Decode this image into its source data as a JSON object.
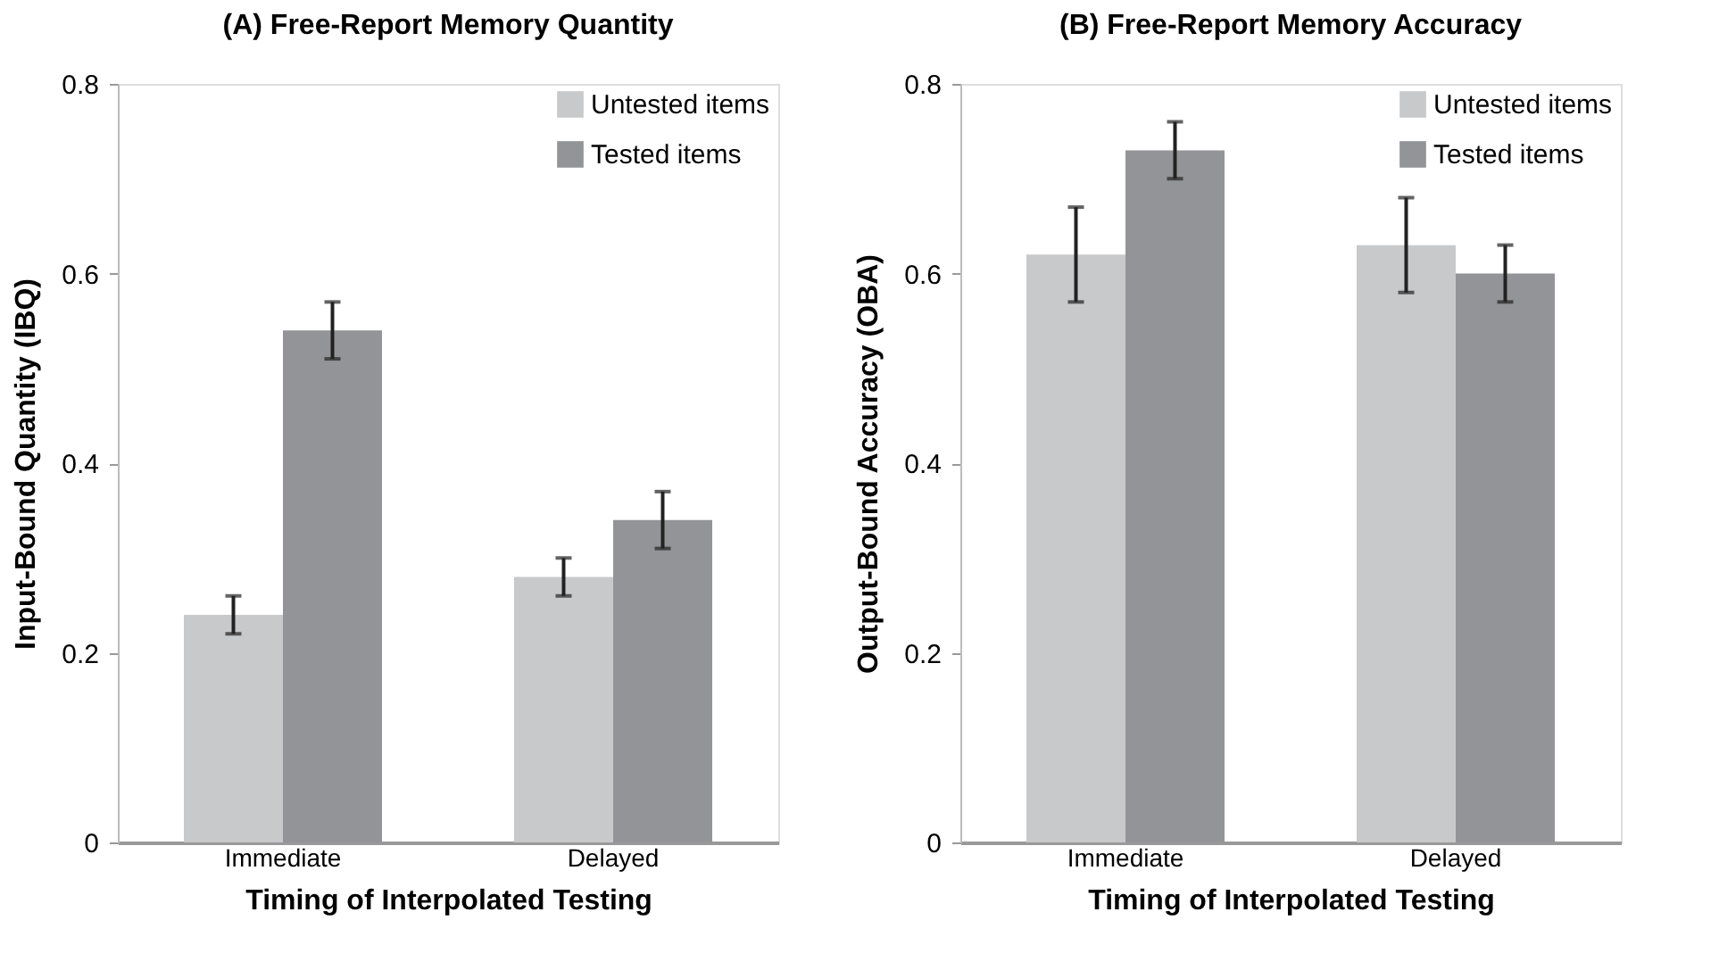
{
  "chart_data": [
    {
      "type": "bar",
      "title": "(A) Free-Report Memory Quantity",
      "xlabel": "Timing of Interpolated Testing",
      "ylabel": "Input-Bound Quantity (IBQ)",
      "categories": [
        "Immediate",
        "Delayed"
      ],
      "series": [
        {
          "name": "Untested items",
          "color": "#c8c9cb",
          "values": [
            0.24,
            0.28
          ],
          "errors": [
            0.02,
            0.02
          ]
        },
        {
          "name": "Tested items",
          "color": "#939497",
          "values": [
            0.54,
            0.34
          ],
          "errors": [
            0.03,
            0.03
          ]
        }
      ],
      "ylim": [
        0,
        0.8
      ],
      "yticks": [
        0,
        0.2,
        0.4,
        0.6,
        0.8
      ],
      "grid": false,
      "legend": "top right"
    },
    {
      "type": "bar",
      "title": "(B) Free-Report Memory Accuracy",
      "xlabel": "Timing of Interpolated Testing",
      "ylabel": "Output-Bound Accuracy (OBA)",
      "categories": [
        "Immediate",
        "Delayed"
      ],
      "series": [
        {
          "name": "Untested items",
          "color": "#c8c9cb",
          "values": [
            0.62,
            0.63
          ],
          "errors": [
            0.05,
            0.05
          ]
        },
        {
          "name": "Tested items",
          "color": "#939497",
          "values": [
            0.73,
            0.6
          ],
          "errors": [
            0.03,
            0.03
          ]
        }
      ],
      "ylim": [
        0,
        0.8
      ],
      "yticks": [
        0,
        0.2,
        0.4,
        0.6,
        0.8
      ],
      "grid": false,
      "legend": "top right"
    }
  ]
}
